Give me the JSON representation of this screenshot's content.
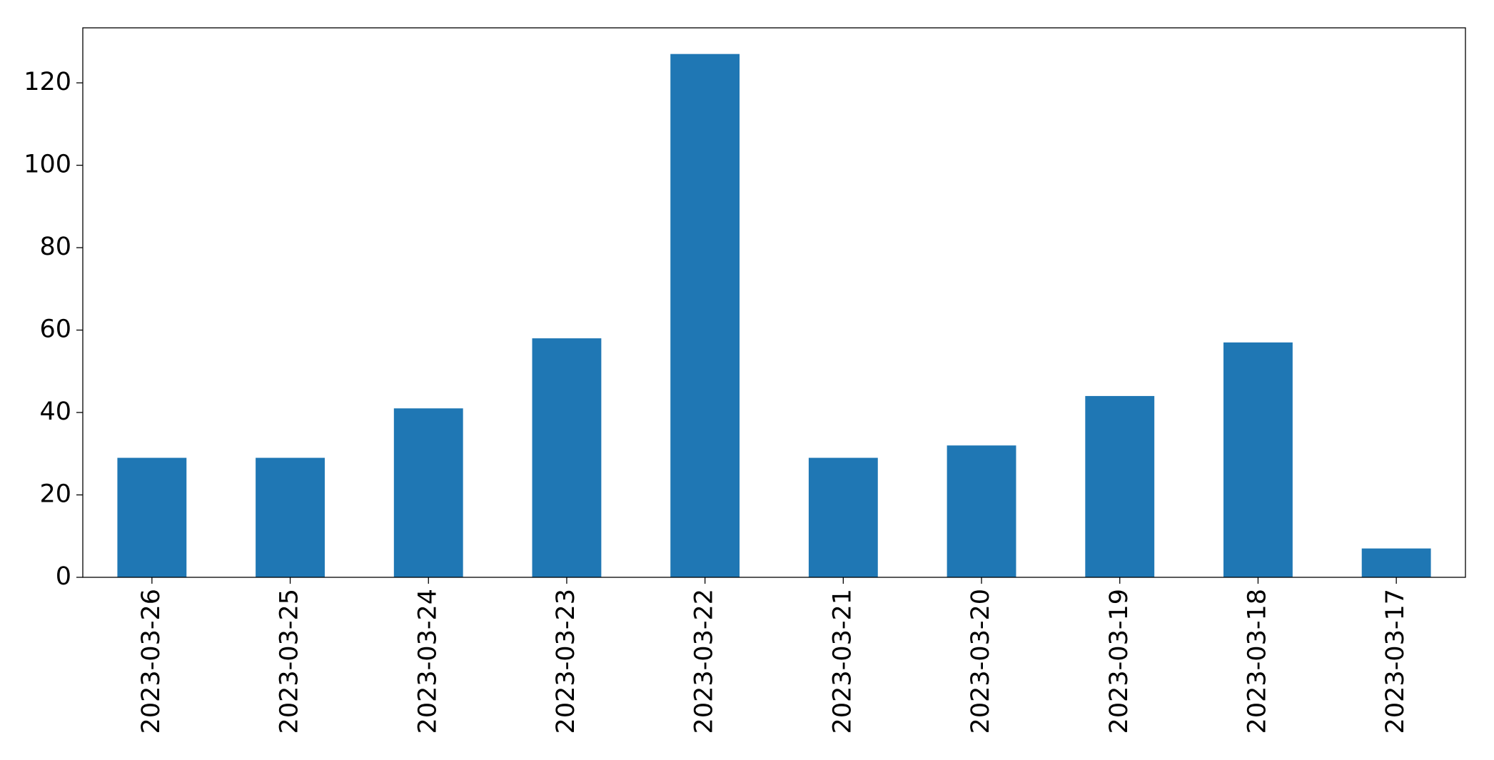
{
  "chart_data": {
    "type": "bar",
    "categories": [
      "2023-03-26",
      "2023-03-25",
      "2023-03-24",
      "2023-03-23",
      "2023-03-22",
      "2023-03-21",
      "2023-03-20",
      "2023-03-19",
      "2023-03-18",
      "2023-03-17"
    ],
    "values": [
      29,
      29,
      41,
      58,
      127,
      29,
      32,
      44,
      57,
      7
    ],
    "color": "#1f77b4",
    "ylim": [
      0,
      133.35
    ],
    "yticks": [
      0,
      20,
      40,
      60,
      80,
      100,
      120
    ],
    "grid": false
  }
}
